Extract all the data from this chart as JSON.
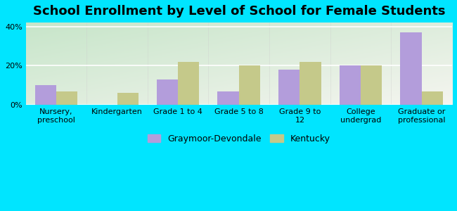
{
  "title": "School Enrollment by Level of School for Female Students",
  "categories": [
    "Nursery,\npreschool",
    "Kindergarten",
    "Grade 1 to 4",
    "Grade 5 to 8",
    "Grade 9 to\n12",
    "College\nundergrad",
    "Graduate or\nprofessional"
  ],
  "graymoor_values": [
    10,
    0,
    13,
    7,
    18,
    20,
    37
  ],
  "kentucky_values": [
    7,
    6,
    22,
    20,
    22,
    20,
    7
  ],
  "graymoor_color": "#b39ddb",
  "kentucky_color": "#c5c98a",
  "ylim": [
    0,
    42
  ],
  "yticks": [
    0,
    20,
    40
  ],
  "ytick_labels": [
    "0%",
    "20%",
    "40%"
  ],
  "background_color": "#00e5ff",
  "legend_labels": [
    "Graymoor-Devondale",
    "Kentucky"
  ],
  "bar_width": 0.35,
  "title_fontsize": 13,
  "tick_fontsize": 8,
  "legend_fontsize": 9,
  "grad_color_topleft": "#c8e6c9",
  "grad_color_bottomright": "#f5f5f0"
}
